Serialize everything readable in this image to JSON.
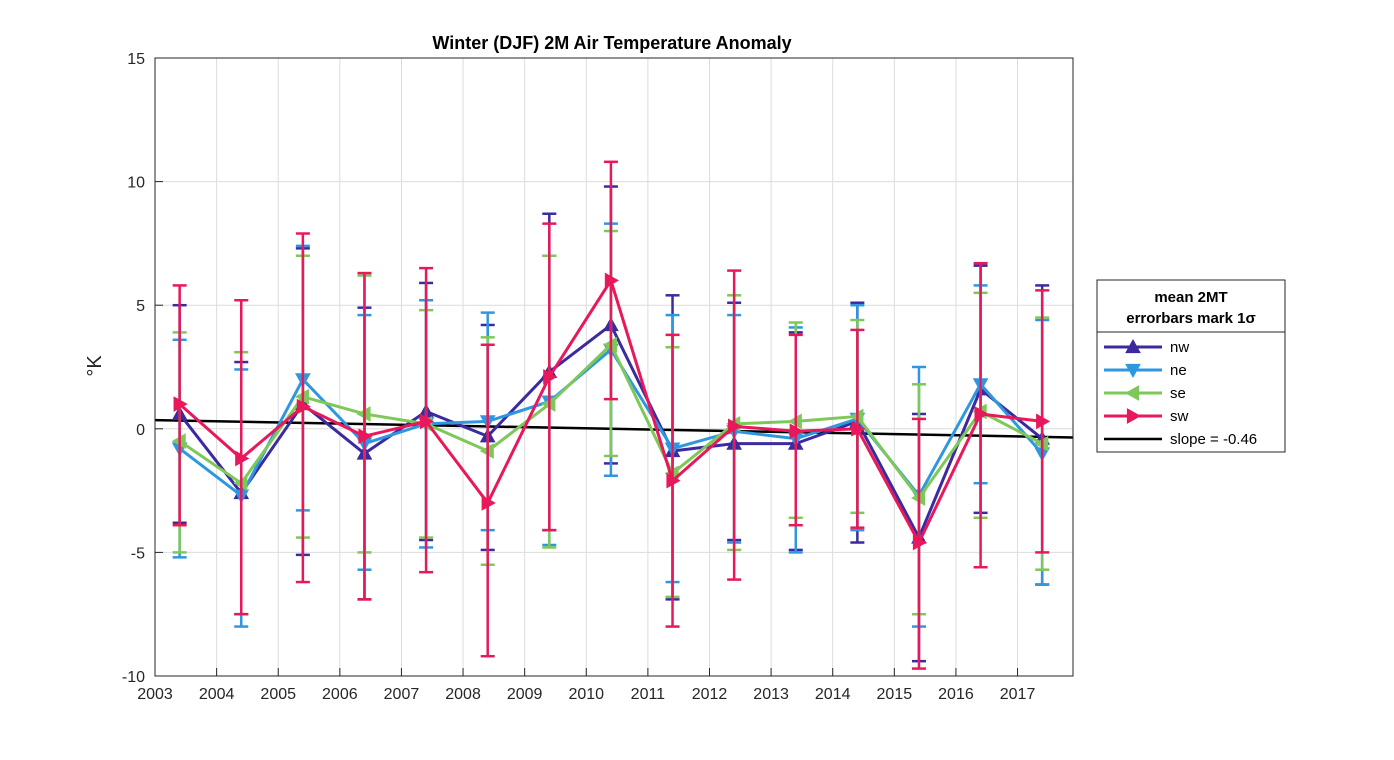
{
  "chart_data": {
    "type": "line",
    "title": "Winter (DJF) 2M Air Temperature Anomaly",
    "xlabel": "",
    "ylabel": "°K",
    "xlim": [
      2003,
      2017.9
    ],
    "ylim": [
      -10,
      15
    ],
    "x_ticks": [
      "2003",
      "2004",
      "2005",
      "2006",
      "2007",
      "2008",
      "2009",
      "2010",
      "2011",
      "2012",
      "2013",
      "2014",
      "2015",
      "2016",
      "2017"
    ],
    "y_ticks": [
      "-10",
      "-5",
      "0",
      "5",
      "10",
      "15"
    ],
    "grid": true,
    "x": [
      2003.4,
      2004.4,
      2005.4,
      2006.4,
      2007.4,
      2008.4,
      2009.4,
      2010.4,
      2011.4,
      2012.4,
      2013.4,
      2014.4,
      2015.4,
      2016.4,
      2017.4
    ],
    "legend": {
      "position": "outside-right",
      "title_lines": [
        "mean 2MT",
        "errorbars mark 1σ"
      ]
    },
    "series": [
      {
        "name": "nw",
        "color": "#3a2ba0",
        "marker": "triangle-up",
        "values": [
          0.6,
          -2.6,
          1.0,
          -1.0,
          0.7,
          -0.3,
          2.3,
          4.2,
          -0.9,
          -0.6,
          -0.6,
          0.3,
          -4.4,
          1.6,
          -0.4
        ],
        "err_lo": [
          -3.8,
          -7.5,
          -5.1,
          -6.9,
          -4.5,
          -4.9,
          -4.1,
          -1.4,
          -6.9,
          -4.5,
          -4.9,
          -4.6,
          -9.4,
          -3.4,
          -6.3
        ],
        "err_hi": [
          5.0,
          2.7,
          7.3,
          4.9,
          5.9,
          4.2,
          8.7,
          9.8,
          5.4,
          5.1,
          3.9,
          5.1,
          0.6,
          6.6,
          5.8
        ]
      },
      {
        "name": "ne",
        "color": "#2f97e0",
        "marker": "triangle-down",
        "values": [
          -0.8,
          -2.7,
          2.0,
          -0.6,
          0.2,
          0.3,
          1.1,
          3.2,
          -0.8,
          -0.1,
          -0.4,
          0.4,
          -2.7,
          1.8,
          -1.0
        ],
        "err_lo": [
          -5.2,
          -8.0,
          -3.3,
          -5.7,
          -4.8,
          -4.1,
          -4.7,
          -1.9,
          -6.2,
          -4.6,
          -5.0,
          -4.1,
          -8.0,
          -2.2,
          -6.3
        ],
        "err_hi": [
          3.6,
          2.4,
          7.4,
          4.6,
          5.2,
          4.7,
          7.0,
          8.3,
          4.6,
          4.6,
          4.1,
          5.0,
          2.5,
          5.8,
          4.4
        ]
      },
      {
        "name": "se",
        "color": "#7ec85a",
        "marker": "triangle-left",
        "values": [
          -0.5,
          -2.2,
          1.3,
          0.6,
          0.2,
          -0.9,
          1.0,
          3.4,
          -1.8,
          0.2,
          0.3,
          0.5,
          -2.8,
          0.7,
          -0.6
        ],
        "err_lo": [
          -5.0,
          -7.5,
          -4.4,
          -5.0,
          -4.4,
          -5.5,
          -4.8,
          -1.1,
          -6.8,
          -4.9,
          -3.6,
          -3.4,
          -7.5,
          -3.6,
          -5.7
        ],
        "err_hi": [
          3.9,
          3.1,
          7.0,
          6.2,
          4.8,
          3.7,
          7.0,
          8.0,
          3.3,
          5.4,
          4.3,
          4.4,
          1.8,
          5.5,
          4.5
        ]
      },
      {
        "name": "sw",
        "color": "#e8185a",
        "marker": "triangle-right",
        "values": [
          1.0,
          -1.2,
          0.9,
          -0.3,
          0.3,
          -3.0,
          2.1,
          6.0,
          -2.1,
          0.1,
          -0.1,
          0.0,
          -4.6,
          0.6,
          0.3
        ],
        "err_lo": [
          -3.9,
          -7.5,
          -6.2,
          -6.9,
          -5.8,
          -9.2,
          -4.1,
          1.2,
          -8.0,
          -6.1,
          -3.9,
          -4.0,
          -9.7,
          -5.6,
          -5.0
        ],
        "err_hi": [
          5.8,
          5.2,
          7.9,
          6.3,
          6.5,
          3.4,
          8.3,
          10.8,
          3.8,
          6.4,
          3.8,
          4.0,
          0.4,
          6.7,
          5.6
        ]
      }
    ],
    "trend": {
      "name": "slope = -0.46",
      "color": "#000000",
      "x": [
        2003,
        2017.9
      ],
      "y": [
        0.35,
        -0.35
      ]
    }
  }
}
